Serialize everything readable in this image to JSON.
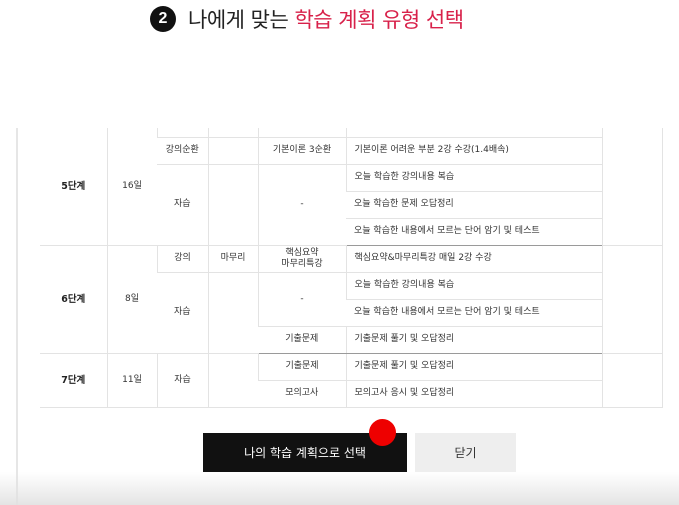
{
  "header": {
    "step_number": "2",
    "title_plain": "나에게 맞는 ",
    "title_accent": "학습 계획 유형 선택"
  },
  "plan_table": {
    "stage5": {
      "name": "5단계",
      "days": "16일",
      "row1": {
        "type": "강의순환",
        "content": "기본이론 3순환",
        "desc": "기본이론 어려운 부분 2강 수강(1.4배속)"
      },
      "self_type": "자습",
      "self_content": "-",
      "self_desc": [
        "오늘 학습한 강의내용 복습",
        "오늘 학습한 문제 오답정리",
        "오늘 학습한 내용에서 모르는 단어 암기 및 테스트"
      ]
    },
    "stage6": {
      "name": "6단계",
      "days": "8일",
      "row1": {
        "type": "강의",
        "subtype": "마무리",
        "content": "핵심요약\n마무리특강",
        "desc": "핵심요약&마무리특강 매일 2강 수강"
      },
      "self_type": "자습",
      "self_content": "-",
      "self_desc": [
        "오늘 학습한 강의내용 복습",
        "오늘 학습한 내용에서 모르는 단어 암기 및 테스트"
      ],
      "row4": {
        "content": "기출문제",
        "desc": "기출문제 풀기 및 오답정리"
      }
    },
    "stage7": {
      "name": "7단계",
      "days": "11일",
      "self_type": "자습",
      "rows": [
        {
          "content": "기출문제",
          "desc": "기출문제 풀기 및 오답정리"
        },
        {
          "content": "모의고사",
          "desc": "모의고사 응시 및 오답정리"
        }
      ]
    }
  },
  "buttons": {
    "select_label": "나의 학습 계획으로 선택",
    "close_label": "닫기"
  },
  "colors": {
    "accent": "#d8214a",
    "primary_button": "#111111",
    "secondary_button": "#eeeeee",
    "cursor": "#ee0000"
  }
}
